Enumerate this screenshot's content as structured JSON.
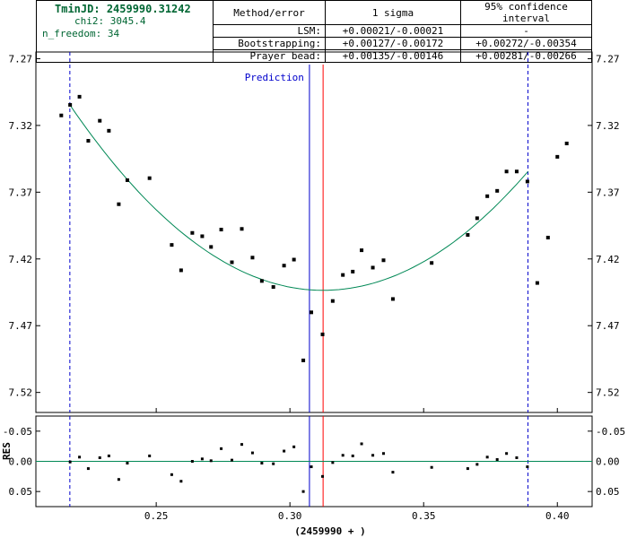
{
  "summary": {
    "tmin_label": "TminJD:",
    "tmin_value": "2459990.31242",
    "chi2_label": "chi2:",
    "chi2_value": "3045.4",
    "nfreedom_label": "n_freedom:",
    "nfreedom_value": "34"
  },
  "error_table": {
    "headers": [
      "Method/error",
      "1 sigma",
      "95% confidence interval"
    ],
    "rows": [
      {
        "method": "LSM:",
        "sigma": "+0.00021/-0.00021",
        "ci": "-"
      },
      {
        "method": "Bootstrapping:",
        "sigma": "+0.00127/-0.00172",
        "ci": "+0.00272/-0.00354"
      },
      {
        "method": "Prayer bead:",
        "sigma": "+0.00135/-0.00146",
        "ci": "+0.00281/-0.00266"
      }
    ]
  },
  "colors": {
    "fit": "#008855",
    "prediction": "#0000cc",
    "tmin": "#ff0000",
    "range": "#0000cc",
    "points": "#000000",
    "zero_line": "#008855"
  },
  "chart_data": [
    {
      "type": "scatter",
      "title": "",
      "xlabel": "(2459990 + )",
      "ylabel": "",
      "xlim": [
        0.205,
        0.413
      ],
      "ylim": [
        7.535,
        7.265
      ],
      "inverted_y": true,
      "grid": false,
      "yticks": [
        "7.27",
        "7.32",
        "7.37",
        "7.42",
        "7.47",
        "7.52"
      ],
      "ytick_values": [
        7.27,
        7.32,
        7.37,
        7.42,
        7.47,
        7.52
      ],
      "annotation": "Prediction",
      "prediction_x": 0.3073,
      "tmin_x": 0.3124,
      "range_lines_x": [
        0.2177,
        0.389
      ],
      "fit": {
        "type": "parabola",
        "vertex_x": 0.3124,
        "vertex_y": 7.4435,
        "x_range": [
          0.2177,
          0.389
        ]
      },
      "points": [
        {
          "x": 0.2145,
          "y": 7.3125
        },
        {
          "x": 0.2178,
          "y": 7.3046
        },
        {
          "x": 0.2213,
          "y": 7.2985
        },
        {
          "x": 0.2246,
          "y": 7.3315
        },
        {
          "x": 0.2289,
          "y": 7.3165
        },
        {
          "x": 0.2323,
          "y": 7.324
        },
        {
          "x": 0.236,
          "y": 7.379
        },
        {
          "x": 0.2392,
          "y": 7.361
        },
        {
          "x": 0.2475,
          "y": 7.3595
        },
        {
          "x": 0.2558,
          "y": 7.4095
        },
        {
          "x": 0.2593,
          "y": 7.4285
        },
        {
          "x": 0.2635,
          "y": 7.4005
        },
        {
          "x": 0.2672,
          "y": 7.403
        },
        {
          "x": 0.2705,
          "y": 7.411
        },
        {
          "x": 0.2743,
          "y": 7.398
        },
        {
          "x": 0.2783,
          "y": 7.4225
        },
        {
          "x": 0.282,
          "y": 7.3975
        },
        {
          "x": 0.286,
          "y": 7.419
        },
        {
          "x": 0.2895,
          "y": 7.4365
        },
        {
          "x": 0.2938,
          "y": 7.441
        },
        {
          "x": 0.2978,
          "y": 7.425
        },
        {
          "x": 0.3015,
          "y": 7.4205
        },
        {
          "x": 0.305,
          "y": 7.496
        },
        {
          "x": 0.308,
          "y": 7.46
        },
        {
          "x": 0.3122,
          "y": 7.4765
        },
        {
          "x": 0.316,
          "y": 7.4515
        },
        {
          "x": 0.3198,
          "y": 7.432
        },
        {
          "x": 0.3235,
          "y": 7.4295
        },
        {
          "x": 0.3268,
          "y": 7.4135
        },
        {
          "x": 0.331,
          "y": 7.4265
        },
        {
          "x": 0.335,
          "y": 7.421
        },
        {
          "x": 0.3385,
          "y": 7.45
        },
        {
          "x": 0.353,
          "y": 7.423
        },
        {
          "x": 0.3665,
          "y": 7.402
        },
        {
          "x": 0.37,
          "y": 7.3895
        },
        {
          "x": 0.3738,
          "y": 7.373
        },
        {
          "x": 0.3775,
          "y": 7.369
        },
        {
          "x": 0.381,
          "y": 7.3545
        },
        {
          "x": 0.3848,
          "y": 7.3545
        },
        {
          "x": 0.3888,
          "y": 7.362
        },
        {
          "x": 0.3925,
          "y": 7.438
        },
        {
          "x": 0.3965,
          "y": 7.404
        },
        {
          "x": 0.4,
          "y": 7.3435
        },
        {
          "x": 0.4035,
          "y": 7.3335
        }
      ]
    },
    {
      "type": "scatter",
      "title": "",
      "xlabel": "(2459990 + )",
      "ylabel": "RES",
      "xlim": [
        0.205,
        0.413
      ],
      "ylim": [
        0.075,
        -0.075
      ],
      "inverted_y": true,
      "grid": false,
      "xticks": [
        "0.25",
        "0.30",
        "0.35",
        "0.40"
      ],
      "xtick_values": [
        0.25,
        0.3,
        0.35,
        0.4
      ],
      "yticks": [
        "-0.05",
        "0.00",
        "0.05"
      ],
      "ytick_values": [
        -0.05,
        0.0,
        0.05
      ],
      "points": [
        {
          "x": 0.2178,
          "y": 0.001
        },
        {
          "x": 0.2213,
          "y": -0.007
        },
        {
          "x": 0.2246,
          "y": 0.012
        },
        {
          "x": 0.2289,
          "y": -0.006
        },
        {
          "x": 0.2323,
          "y": -0.009
        },
        {
          "x": 0.236,
          "y": 0.03
        },
        {
          "x": 0.2392,
          "y": 0.003
        },
        {
          "x": 0.2475,
          "y": -0.009
        },
        {
          "x": 0.2558,
          "y": 0.022
        },
        {
          "x": 0.2593,
          "y": 0.033
        },
        {
          "x": 0.2635,
          "y": 0.0
        },
        {
          "x": 0.2672,
          "y": -0.004
        },
        {
          "x": 0.2705,
          "y": -0.001
        },
        {
          "x": 0.2743,
          "y": -0.021
        },
        {
          "x": 0.2783,
          "y": -0.002
        },
        {
          "x": 0.282,
          "y": -0.028
        },
        {
          "x": 0.286,
          "y": -0.014
        },
        {
          "x": 0.2895,
          "y": 0.003
        },
        {
          "x": 0.2938,
          "y": 0.004
        },
        {
          "x": 0.2978,
          "y": -0.017
        },
        {
          "x": 0.3015,
          "y": -0.024
        },
        {
          "x": 0.305,
          "y": 0.05
        },
        {
          "x": 0.308,
          "y": 0.009
        },
        {
          "x": 0.3122,
          "y": 0.025
        },
        {
          "x": 0.316,
          "y": 0.002
        },
        {
          "x": 0.3198,
          "y": -0.01
        },
        {
          "x": 0.3235,
          "y": -0.009
        },
        {
          "x": 0.3268,
          "y": -0.029
        },
        {
          "x": 0.331,
          "y": -0.01
        },
        {
          "x": 0.335,
          "y": -0.013
        },
        {
          "x": 0.3385,
          "y": 0.018
        },
        {
          "x": 0.353,
          "y": 0.01
        },
        {
          "x": 0.3665,
          "y": 0.012
        },
        {
          "x": 0.37,
          "y": 0.005
        },
        {
          "x": 0.3738,
          "y": -0.007
        },
        {
          "x": 0.3775,
          "y": -0.003
        },
        {
          "x": 0.381,
          "y": -0.013
        },
        {
          "x": 0.3848,
          "y": -0.006
        },
        {
          "x": 0.3888,
          "y": 0.009
        }
      ]
    }
  ]
}
